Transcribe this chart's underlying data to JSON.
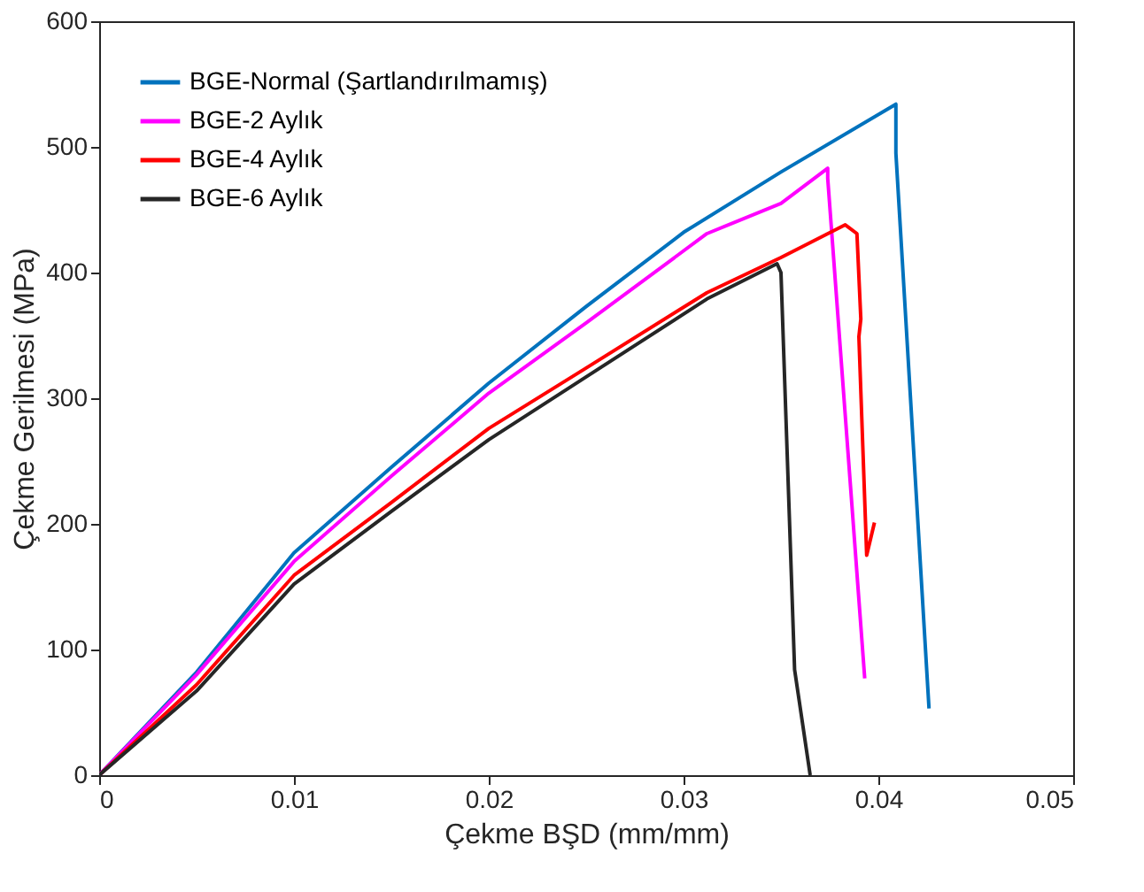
{
  "chart_data": {
    "type": "line",
    "xlabel": "Çekme BŞD (mm/mm)",
    "ylabel": "Çekme Gerilmesi (MPa)",
    "xlim": [
      0,
      0.05
    ],
    "ylim": [
      0,
      600
    ],
    "xticks": [
      0,
      0.01,
      0.02,
      0.03,
      0.04,
      0.05
    ],
    "yticks": [
      0,
      100,
      200,
      300,
      400,
      500,
      600
    ],
    "grid": false,
    "legend": "top left",
    "marker": "none",
    "line_style": "solid",
    "series": [
      {
        "name": "BGE-Normal (Şartlandırılmamış)",
        "color": "#0072bd",
        "x": [
          0,
          0.005,
          0.01,
          0.015,
          0.02,
          0.025,
          0.03,
          0.035,
          0.0409,
          0.0409,
          0.0426
        ],
        "values": [
          0,
          82,
          177,
          245,
          312,
          373,
          432,
          480,
          534,
          495,
          53
        ]
      },
      {
        "name": "BGE-2 Aylık",
        "color": "#ff00ff",
        "x": [
          0,
          0.005,
          0.01,
          0.015,
          0.02,
          0.025,
          0.0312,
          0.035,
          0.0374,
          0.0374,
          0.0393
        ],
        "values": [
          0,
          80,
          170,
          238,
          304,
          360,
          431,
          455,
          483,
          475,
          77
        ]
      },
      {
        "name": "BGE-4 Aylık",
        "color": "#ff0000",
        "x": [
          0,
          0.005,
          0.01,
          0.015,
          0.02,
          0.025,
          0.0312,
          0.035,
          0.0383,
          0.0389,
          0.0391,
          0.039,
          0.0394,
          0.0398
        ],
        "values": [
          0,
          72,
          159,
          217,
          276,
          324,
          384,
          412,
          438,
          431,
          363,
          349,
          175,
          201
        ]
      },
      {
        "name": "BGE-6 Aylık",
        "color": "#262626",
        "x": [
          0,
          0.005,
          0.01,
          0.015,
          0.02,
          0.025,
          0.0312,
          0.0348,
          0.035,
          0.0357,
          0.0365
        ],
        "values": [
          0,
          67,
          152,
          210,
          267,
          317,
          379,
          407,
          400,
          84,
          0
        ]
      }
    ]
  }
}
